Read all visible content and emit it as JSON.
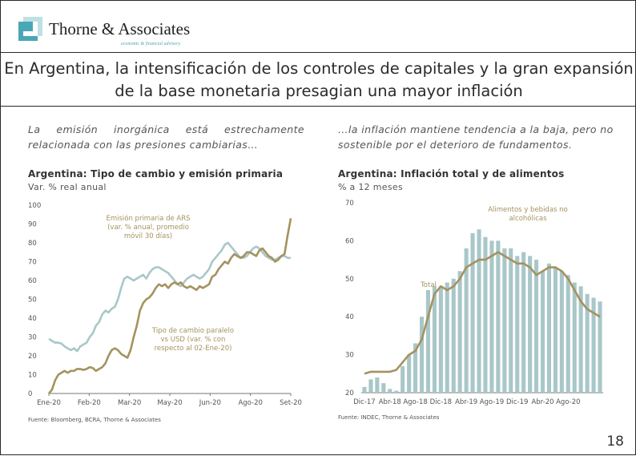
{
  "header": {
    "firm_name": "Thorne & Associates",
    "tagline": "economic & financial advisory",
    "brand_colors": {
      "teal": "#4aa7b5",
      "gold": "#a4925f"
    }
  },
  "slide_title": "En Argentina, la intensificación de los controles de capitales y la gran expansión de la base monetaria presagian una mayor inflación",
  "left_panel": {
    "intro": "La emisión inorgánica está estrechamente relacionada con las presiones cambiarias…",
    "chart_title": "Argentina: Tipo de cambio y emisión primaria",
    "chart_subtitle": "Var. % real anual",
    "source": "Fuente: Bloomberg, BCRA, Thorne & Associates"
  },
  "right_panel": {
    "intro": "…la inflación mantiene tendencia a la baja, pero no sostenible por el deterioro de fundamentos.",
    "chart_title": "Argentina: Inflación total y de alimentos",
    "chart_subtitle": "% a 12 meses",
    "source": "Fuente: INDEC, Thorne & Associates"
  },
  "page_number": "18",
  "chart_data": [
    {
      "type": "line",
      "x_labels": [
        "Ene-20",
        "Feb-20",
        "Mar-20",
        "May-20",
        "Jun-20",
        "Ago-20",
        "Set-20"
      ],
      "y_ticks": [
        0,
        10,
        20,
        30,
        40,
        50,
        60,
        70,
        80,
        90,
        100
      ],
      "ylim": [
        0,
        100
      ],
      "grid": false,
      "series": [
        {
          "name": "Emisión primaria de ARS (var. % anual, promedio móvil 30 días)",
          "color": "#a9c7c9",
          "values": [
            29,
            28,
            27,
            27,
            26.5,
            25,
            24,
            23,
            24,
            22.5,
            25,
            26,
            27,
            30,
            32,
            36,
            38,
            42,
            44,
            43,
            45,
            46,
            50,
            56,
            61,
            62,
            61,
            60,
            61,
            62,
            63,
            61,
            64,
            66,
            67,
            67,
            66,
            65,
            64,
            62,
            60,
            58,
            57,
            59,
            61,
            62,
            63,
            62,
            61,
            62,
            64,
            66,
            70,
            72,
            74,
            76,
            79,
            80,
            78,
            76,
            74,
            72,
            72,
            73,
            75,
            77,
            78,
            77,
            75,
            73,
            72,
            71,
            71,
            72,
            73,
            73,
            72,
            72
          ]
        },
        {
          "name": "Tipo de cambio paralelo vs USD (var. % con respecto al 02-Ene-20)",
          "color": "#a4925f",
          "values": [
            0,
            2,
            7,
            10,
            11,
            12,
            11,
            12,
            12,
            13,
            13,
            12.5,
            13,
            14,
            13.5,
            12,
            13,
            14,
            16,
            20,
            23,
            24,
            23,
            21,
            20,
            19,
            23,
            30,
            36,
            44,
            48,
            50,
            51,
            53,
            56,
            58,
            57,
            58,
            56,
            58,
            59,
            58,
            59,
            57,
            56,
            57,
            56,
            55,
            57,
            56,
            57,
            58,
            62,
            63,
            66,
            68,
            70,
            69,
            72,
            74,
            73,
            72,
            73,
            75,
            75,
            74,
            73,
            76,
            77,
            75,
            73,
            72,
            70,
            71,
            73,
            74,
            84,
            93
          ]
        }
      ],
      "annotations": [
        "Emisión primaria de ARS (var. % anual, promedio móvil 30 días)",
        "Tipo de cambio paralelo vs USD (var. % con respecto al 02-Ene-20)"
      ]
    },
    {
      "type": "bar+line",
      "x_labels": [
        "Dic-17",
        "Abr-18",
        "Ago-18",
        "Dic-18",
        "Abr-19",
        "Ago-19",
        "Dic-19",
        "Abr-20",
        "Ago-20"
      ],
      "y_ticks": [
        20,
        30,
        40,
        50,
        60,
        70
      ],
      "ylim": [
        20,
        70
      ],
      "grid": false,
      "series": [
        {
          "name": "Alimentos y bebidas no alcohólicas",
          "type": "bar",
          "color": "#a9c7c9",
          "values": [
            21.5,
            23.5,
            24,
            22.5,
            21,
            20.5,
            27,
            30,
            33,
            40,
            47,
            48,
            48,
            49,
            50,
            52,
            58,
            62,
            63,
            61,
            60,
            60,
            58,
            58,
            56,
            57,
            56,
            55,
            52,
            54,
            53,
            52,
            51,
            49,
            48,
            46,
            45,
            44
          ]
        },
        {
          "name": "Total",
          "type": "line",
          "color": "#a4925f",
          "values": [
            25,
            25.5,
            25.5,
            25.5,
            25.5,
            26,
            28,
            30,
            31,
            34,
            40,
            46,
            48,
            47,
            48,
            50,
            53,
            54,
            55,
            55,
            56,
            57,
            56,
            55,
            54,
            54,
            53,
            51,
            52,
            53,
            53,
            52,
            50,
            47,
            44,
            42,
            41,
            40
          ]
        }
      ],
      "annotations": [
        "Alimentos y bebidas no alcohólicas",
        "Total"
      ]
    }
  ]
}
